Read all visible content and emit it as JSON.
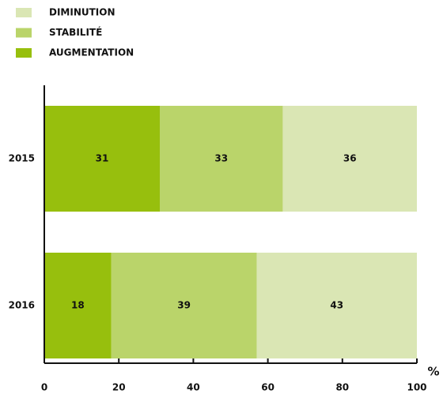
{
  "chart_data": {
    "type": "stacked-barh",
    "categories": [
      "2015",
      "2016"
    ],
    "series": [
      {
        "name": "AUGMENTATION",
        "color": "#97bf0d",
        "values": [
          31,
          18
        ]
      },
      {
        "name": "STABILITÉ",
        "color": "#bad46a",
        "values": [
          33,
          39
        ]
      },
      {
        "name": "DIMINUTION",
        "color": "#dae6b4",
        "values": [
          36,
          43
        ]
      }
    ],
    "xlim": [
      0,
      100
    ],
    "xticks": [
      0,
      20,
      40,
      60,
      80,
      100
    ],
    "xlabel": "%"
  }
}
